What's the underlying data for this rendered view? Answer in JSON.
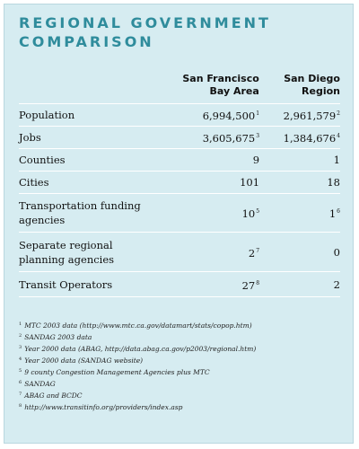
{
  "title": "REGIONAL GOVERNMENT COMPARISON",
  "table": {
    "columns": [
      "San Francisco Bay Area",
      "San Diego Region"
    ],
    "rows": [
      {
        "label": "Population",
        "cells": [
          {
            "text": "6,994,500",
            "note": "1"
          },
          {
            "text": "2,961,579",
            "note": "2"
          }
        ]
      },
      {
        "label": "Jobs",
        "cells": [
          {
            "text": "3,605,675",
            "note": "3"
          },
          {
            "text": "1,384,676",
            "note": "4"
          }
        ]
      },
      {
        "label": "Counties",
        "cells": [
          {
            "text": "9"
          },
          {
            "text": "1"
          }
        ]
      },
      {
        "label": "Cities",
        "cells": [
          {
            "text": "101"
          },
          {
            "text": "18"
          }
        ]
      },
      {
        "label": "Transportation funding agencies",
        "cells": [
          {
            "text": "10",
            "note": "5"
          },
          {
            "text": "1",
            "note": "6"
          }
        ]
      },
      {
        "label": "Separate regional planning agencies",
        "cells": [
          {
            "text": "2",
            "note": "7"
          },
          {
            "text": "0"
          }
        ]
      },
      {
        "label": "Transit Operators",
        "cells": [
          {
            "text": "27",
            "note": "8"
          },
          {
            "text": "2"
          }
        ]
      }
    ]
  },
  "footnotes": [
    {
      "number": "1",
      "text": "MTC 2003 data (http://www.mtc.ca.gov/datamart/stats/copop.htm)"
    },
    {
      "number": "2",
      "text": "SANDAG 2003 data"
    },
    {
      "number": "3",
      "text": "Year 2000 data (ABAG, http://data.abag.ca.gov/p2003/regional.htm)"
    },
    {
      "number": "4",
      "text": "Year 2000 data (SANDAG website)"
    },
    {
      "number": "5",
      "text": "9 county Congestion Management Agencies plus MTC"
    },
    {
      "number": "6",
      "text": "SANDAG"
    },
    {
      "number": "7",
      "text": "ABAG and BCDC"
    },
    {
      "number": "8",
      "text": "http://www.transitinfo.org/providers/index.asp"
    }
  ]
}
